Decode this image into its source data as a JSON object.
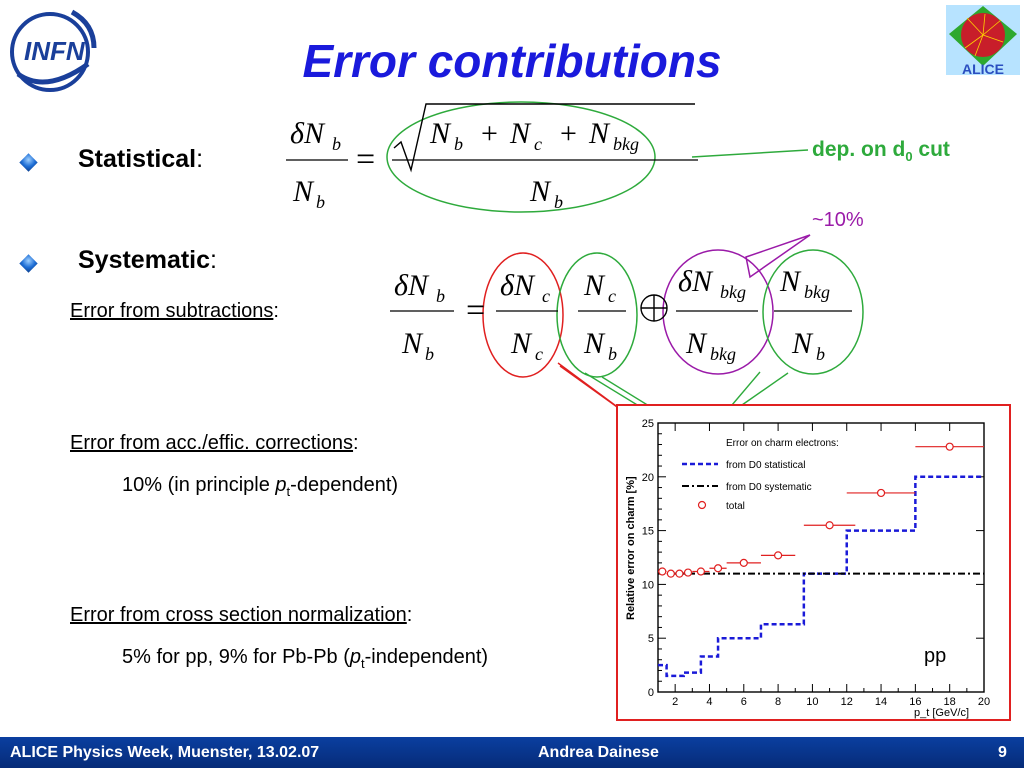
{
  "slide": {
    "title": "Error contributions",
    "infn_logo_text": "INFN",
    "alice_logo_text": "ALICE",
    "statistical_label": "Statistical",
    "statistical_colon": ":",
    "systematic_label": "Systematic",
    "systematic_colon": ":",
    "subtractions_label": "Error from subtractions",
    "subtractions_colon": ":",
    "acc_label": "Error from acc./effic. corrections",
    "acc_colon": ":",
    "acc_value_pre": "10% (in principle ",
    "acc_value_pt": "p",
    "acc_value_sub": "t",
    "acc_value_post": "-dependent)",
    "norm_label": "Error from cross section normalization",
    "norm_colon": ":",
    "norm_value_pre": "5% for pp, 9% for Pb-Pb (",
    "norm_value_pt": "p",
    "norm_value_sub": "t",
    "norm_value_post": "-independent)",
    "dep_note_pre": "dep. on d",
    "dep_note_sub": "0",
    "dep_note_post": " cut",
    "percent_note": "~10%",
    "pp_label": "pp",
    "colors": {
      "title": "#1a1adc",
      "green_note": "#2eaa3c",
      "purple_note": "#9a1aa8",
      "footer": "#0a3fa0"
    }
  },
  "footer": {
    "left": "ALICE Physics Week, Muenster, 13.02.07",
    "center": "Andrea Dainese",
    "page": "9"
  },
  "chart_data": {
    "type": "line",
    "ylabel": "Relative error on charm [%]",
    "xlabel": "p_t [GeV/c]",
    "xlim": [
      1,
      20
    ],
    "ylim": [
      0,
      25
    ],
    "x_ticks": [
      2,
      4,
      6,
      8,
      10,
      12,
      14,
      16,
      18,
      20
    ],
    "y_ticks": [
      0,
      5,
      10,
      15,
      20,
      25
    ],
    "legend_title": "Error on charm electrons:",
    "series": [
      {
        "name": "from D0 statistical",
        "style": "dashed",
        "color": "#1a1ad8",
        "steps": [
          [
            1,
            2.5
          ],
          [
            1.5,
            1.5
          ],
          [
            2.5,
            1.8
          ],
          [
            3.5,
            3.3
          ],
          [
            4.5,
            5.0
          ],
          [
            7,
            6.3
          ],
          [
            9.5,
            11.0
          ],
          [
            12,
            15.0
          ],
          [
            16,
            20.0
          ],
          [
            20,
            20.0
          ]
        ]
      },
      {
        "name": "from D0 systematic",
        "style": "dashdot",
        "color": "#000000",
        "steps": [
          [
            1,
            11.0
          ],
          [
            20,
            11.0
          ]
        ]
      },
      {
        "name": "total",
        "style": "markers",
        "color": "#e02020",
        "points": [
          [
            1.25,
            11.2
          ],
          [
            1.75,
            11.0
          ],
          [
            2.25,
            11.0
          ],
          [
            2.75,
            11.1
          ],
          [
            3.5,
            11.2
          ],
          [
            4.5,
            11.5
          ],
          [
            6,
            12.0
          ],
          [
            8,
            12.7
          ],
          [
            11,
            15.5
          ],
          [
            14,
            18.5
          ],
          [
            18,
            22.8
          ]
        ],
        "xerr": [
          0.25,
          0.25,
          0.25,
          0.25,
          0.5,
          0.5,
          1,
          1,
          1.5,
          2,
          2
        ]
      }
    ]
  }
}
